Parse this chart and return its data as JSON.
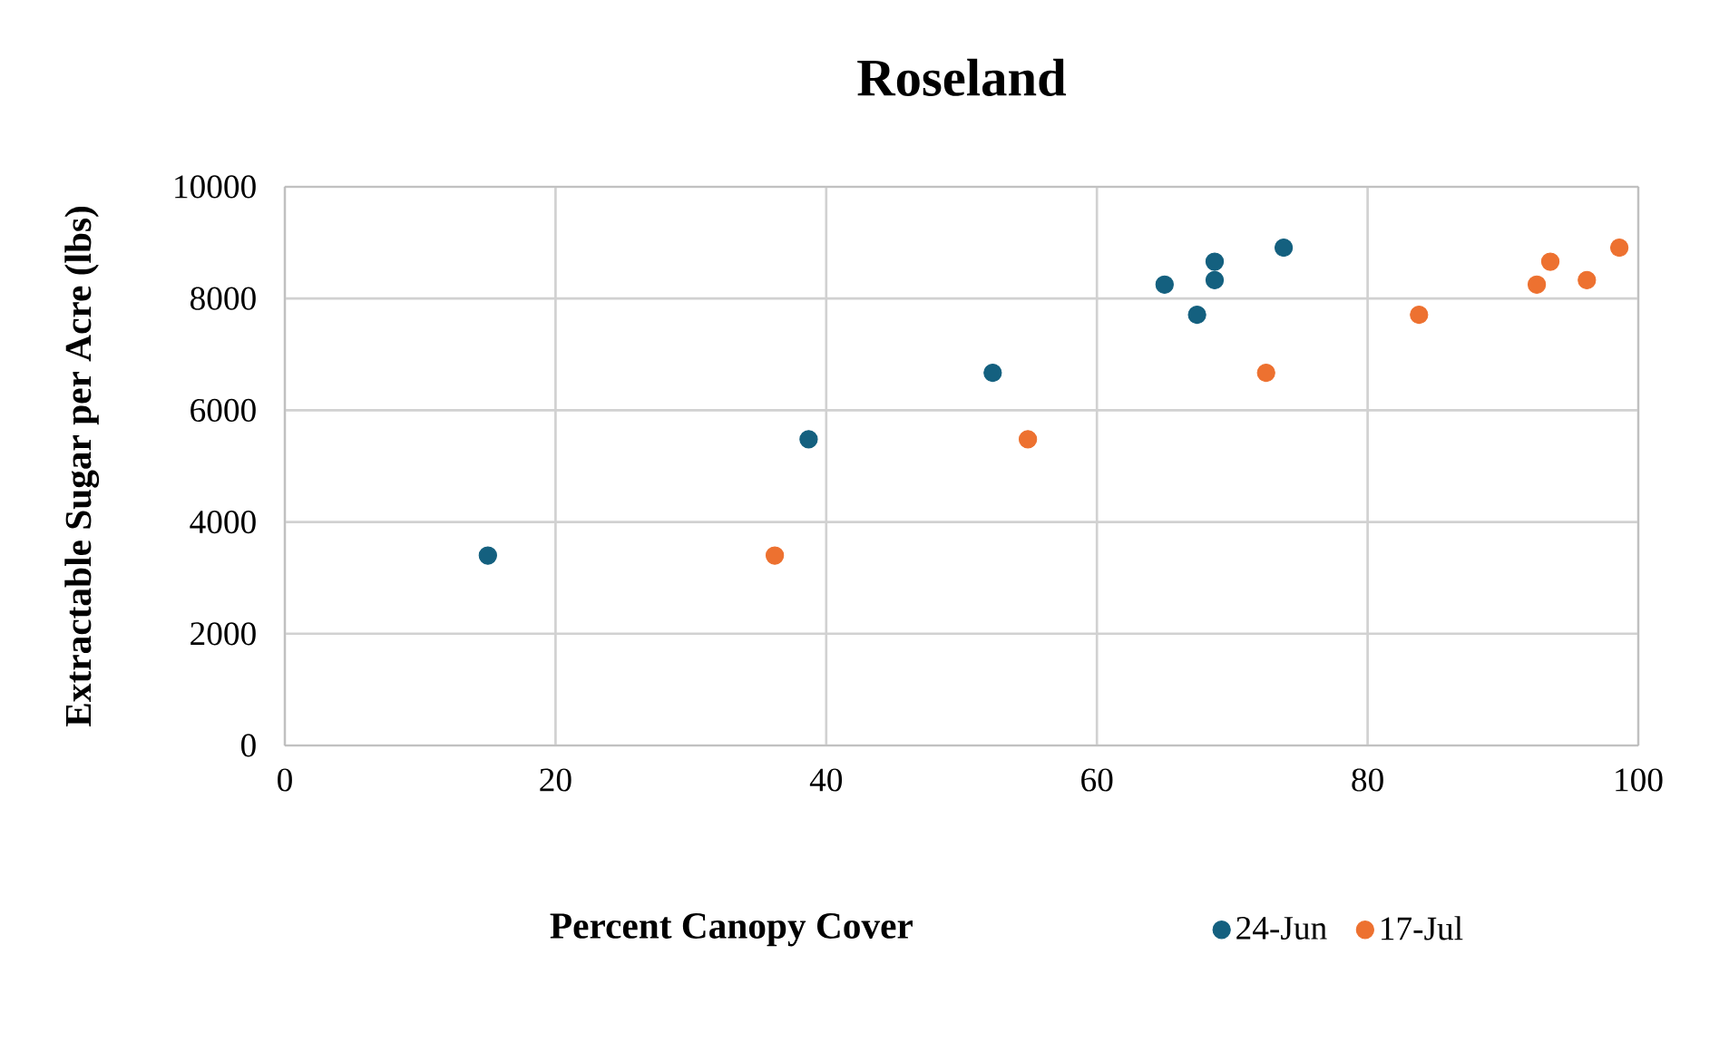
{
  "chart_data": {
    "type": "scatter",
    "title": "Roseland",
    "xlabel": "Percent Canopy Cover",
    "ylabel": "Extractable Sugar per Acre (lbs)",
    "xlim": [
      0,
      100
    ],
    "ylim": [
      0,
      10000
    ],
    "xticks": [
      0,
      20,
      40,
      60,
      80,
      100
    ],
    "yticks": [
      0,
      2000,
      4000,
      6000,
      8000,
      10000
    ],
    "grid": true,
    "legend": "bottom right",
    "marker": "circle",
    "series": [
      {
        "name": "24-Jun",
        "color": "#14607f",
        "x": [
          15.0,
          38.7,
          52.3,
          65.0,
          67.4,
          68.7,
          68.7,
          73.8
        ],
        "values": [
          3400,
          5480,
          6670,
          8250,
          7710,
          8660,
          8330,
          8910
        ]
      },
      {
        "name": "17-Jul",
        "color": "#ed7130",
        "x": [
          36.2,
          54.9,
          72.5,
          83.8,
          92.5,
          93.5,
          96.2,
          98.6
        ],
        "values": [
          3400,
          5480,
          6670,
          7710,
          8250,
          8660,
          8330,
          8910
        ]
      }
    ]
  }
}
